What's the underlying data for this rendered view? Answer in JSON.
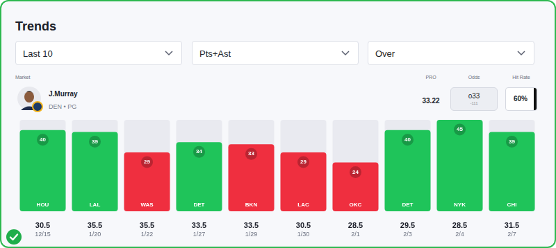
{
  "header": {
    "title": "Trends"
  },
  "filters": [
    "Last 10",
    "Pts+Ast",
    "Over"
  ],
  "player": {
    "market_label": "Market",
    "name": "J.Murray",
    "team_pos": "DEN • PG"
  },
  "stats": {
    "pro_label": "PRO",
    "pro": 33.22,
    "odds_label": "Odds",
    "odds": "o33",
    "odds_price": "-111",
    "hit_rate_label": "Hit Rate",
    "hit_rate": "60%"
  },
  "chart_data": {
    "type": "bar",
    "categories": [
      "HOU",
      "LAL",
      "WAS",
      "DET",
      "BKN",
      "LAC",
      "OKC",
      "DET",
      "NYK",
      "CHI"
    ],
    "values": [
      40,
      39,
      29,
      34,
      33,
      29,
      24,
      40,
      45,
      39
    ],
    "colors": [
      "#1fc45a",
      "#1fc45a",
      "#ef2f3f",
      "#1fc45a",
      "#ef2f3f",
      "#ef2f3f",
      "#ef2f3f",
      "#1fc45a",
      "#1fc45a",
      "#1fc45a"
    ],
    "lines": [
      30.5,
      35.5,
      35.5,
      33.5,
      33.5,
      30.5,
      28.5,
      29.5,
      28.5,
      31.5
    ],
    "dates": [
      "12/15",
      "1/20",
      "1/22",
      "1/27",
      "1/29",
      "1/30",
      "2/1",
      "2/3",
      "2/4",
      "2/7"
    ],
    "ylim": [
      0,
      45
    ],
    "grid": false,
    "data_labels": true,
    "tick_labels": false
  }
}
